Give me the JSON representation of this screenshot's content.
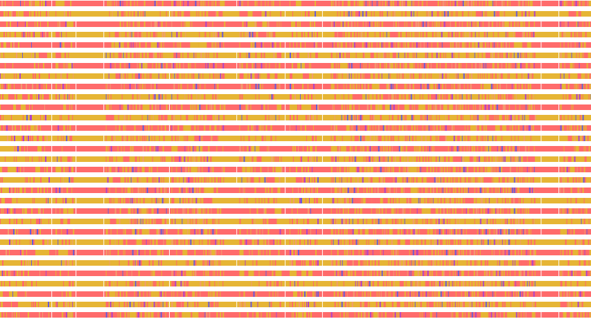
{
  "figure": {
    "kind": "alignment-track-overview",
    "row_count": 31,
    "row_fill_pattern": [
      "salmon",
      "gold"
    ],
    "colors": {
      "background": "#ffffff",
      "salmon": "#ff6b6b",
      "gold": "#e6b535",
      "purple": "#b043c8",
      "blue": "#6a5bd6",
      "tick_light": "#f29d6e"
    },
    "blocks": [
      {
        "name": "block-a",
        "start": 0.0,
        "end": 0.083,
        "density": 0.45
      },
      {
        "name": "block-b",
        "start": 0.094,
        "end": 0.124,
        "density": 0.55
      },
      {
        "name": "block-c",
        "start": 0.179,
        "end": 0.282,
        "density": 0.6
      },
      {
        "name": "block-d",
        "start": 0.29,
        "end": 0.37,
        "density": 0.55
      },
      {
        "name": "block-e",
        "start": 0.372,
        "end": 0.38,
        "density": 0.3
      },
      {
        "name": "block-f",
        "start": 0.405,
        "end": 0.476,
        "density": 0.45
      },
      {
        "name": "block-g",
        "start": 0.49,
        "end": 0.538,
        "density": 0.55
      },
      {
        "name": "block-h",
        "start": 0.56,
        "end": 0.905,
        "density": 0.7
      },
      {
        "name": "block-i",
        "start": 0.948,
        "end": 1.0,
        "density": 0.55
      }
    ]
  }
}
